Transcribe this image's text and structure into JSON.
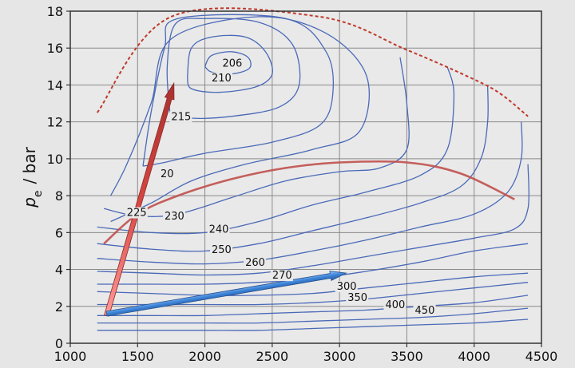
{
  "chart_data": {
    "type": "line",
    "title": "",
    "xlabel": "",
    "ylabel_symbol": "p",
    "ylabel_subscript": "e",
    "ylabel_unit": "/ bar",
    "xlim": [
      1000,
      4500
    ],
    "ylim": [
      0,
      18
    ],
    "x_ticks": [
      1000,
      1500,
      2000,
      2500,
      3000,
      3500,
      4000,
      4500
    ],
    "y_ticks": [
      0,
      2,
      4,
      6,
      8,
      10,
      12,
      14,
      16,
      18
    ],
    "grid": true,
    "colors": {
      "background": "#e6e6e6",
      "plot_background": "#e9e9e9",
      "grid": "#8a8a8a",
      "contour": "#4a69b8",
      "full_load": "#c0392b",
      "road_load": "#c0504d",
      "red_arrow": "#d64541",
      "blue_arrow": "#3b82d6"
    },
    "series": [
      {
        "role": "full-load-curve",
        "style": "dotted",
        "points": [
          [
            1200,
            12.5
          ],
          [
            1750,
            17.7
          ],
          [
            2850,
            17.7
          ],
          [
            3500,
            15.9
          ],
          [
            4000,
            14.3
          ],
          [
            4200,
            13.5
          ],
          [
            4400,
            12.3
          ]
        ]
      },
      {
        "role": "road-load-curve",
        "style": "solid",
        "points": [
          [
            1250,
            5.4
          ],
          [
            1500,
            7.0
          ],
          [
            1800,
            8.0
          ],
          [
            2200,
            8.9
          ],
          [
            2600,
            9.5
          ],
          [
            3000,
            9.8
          ],
          [
            3500,
            9.8
          ],
          [
            3900,
            9.2
          ],
          [
            4300,
            7.8
          ]
        ]
      }
    ],
    "contours": [
      {
        "label": "206",
        "label_at": [
          2130,
          15.0
        ],
        "points": [
          [
            2000,
            15.0
          ],
          [
            2050,
            15.6
          ],
          [
            2200,
            15.8
          ],
          [
            2320,
            15.5
          ],
          [
            2330,
            14.9
          ],
          [
            2200,
            14.6
          ],
          [
            2050,
            14.7
          ],
          [
            2000,
            15.0
          ]
        ]
      },
      {
        "label": "210",
        "label_at": [
          2050,
          14.2
        ],
        "points": [
          [
            1870,
            14.4
          ],
          [
            1900,
            16.0
          ],
          [
            2050,
            16.6
          ],
          [
            2300,
            16.6
          ],
          [
            2450,
            15.8
          ],
          [
            2500,
            14.6
          ],
          [
            2380,
            13.9
          ],
          [
            2100,
            13.6
          ],
          [
            1900,
            13.8
          ],
          [
            1870,
            14.4
          ]
        ]
      },
      {
        "label": "215",
        "label_at": [
          1750,
          12.1
        ],
        "points": [
          [
            1740,
            12.5
          ],
          [
            1720,
            15.0
          ],
          [
            1780,
            17.3
          ],
          [
            2000,
            17.6
          ],
          [
            2400,
            17.4
          ],
          [
            2650,
            16.2
          ],
          [
            2700,
            14.0
          ],
          [
            2550,
            12.8
          ],
          [
            2200,
            12.3
          ],
          [
            1900,
            12.2
          ],
          [
            1740,
            12.5
          ]
        ]
      },
      {
        "label": "20",
        "label_at": [
          1670,
          9.0
        ],
        "points": [
          [
            1540,
            9.6
          ],
          [
            1600,
            12.5
          ],
          [
            1700,
            16.0
          ],
          [
            1800,
            17.6
          ],
          [
            2600,
            17.6
          ],
          [
            2900,
            15.8
          ],
          [
            2950,
            13.5
          ],
          [
            2850,
            11.8
          ],
          [
            2500,
            10.9
          ],
          [
            2000,
            10.3
          ],
          [
            1700,
            9.8
          ],
          [
            1540,
            9.6
          ]
        ]
      },
      {
        "label": "225",
        "label_at": [
          1420,
          6.9
        ],
        "points": [
          [
            1300,
            8.0
          ],
          [
            1420,
            9.7
          ],
          [
            1600,
            13.0
          ],
          [
            1750,
            16.5
          ],
          [
            2400,
            17.7
          ],
          [
            2900,
            16.8
          ],
          [
            3200,
            14.5
          ],
          [
            3150,
            11.5
          ],
          [
            2800,
            10.5
          ],
          [
            2300,
            9.7
          ],
          [
            1900,
            8.8
          ],
          [
            1600,
            7.6
          ],
          [
            1300,
            6.6
          ]
        ]
      },
      {
        "label": "230",
        "label_at": [
          1700,
          6.7
        ],
        "points": [
          [
            1250,
            7.3
          ],
          [
            1500,
            6.9
          ],
          [
            1800,
            7.0
          ],
          [
            2200,
            7.9
          ],
          [
            2600,
            8.8
          ],
          [
            3000,
            9.3
          ],
          [
            3300,
            9.5
          ],
          [
            3500,
            10.5
          ],
          [
            3500,
            13.0
          ],
          [
            3450,
            15.5
          ]
        ]
      },
      {
        "label": "240",
        "label_at": [
          2030,
          6.0
        ],
        "points": [
          [
            1200,
            6.3
          ],
          [
            1600,
            6.0
          ],
          [
            2000,
            6.0
          ],
          [
            2400,
            6.6
          ],
          [
            2800,
            7.5
          ],
          [
            3200,
            8.2
          ],
          [
            3600,
            9.1
          ],
          [
            3800,
            10.5
          ],
          [
            3850,
            13.5
          ],
          [
            3800,
            15.0
          ]
        ]
      },
      {
        "label": "250",
        "label_at": [
          2050,
          4.9
        ],
        "points": [
          [
            1200,
            5.4
          ],
          [
            1600,
            5.1
          ],
          [
            2000,
            5.0
          ],
          [
            2400,
            5.4
          ],
          [
            2800,
            6.1
          ],
          [
            3200,
            6.8
          ],
          [
            3600,
            7.6
          ],
          [
            3900,
            8.5
          ],
          [
            4050,
            10.0
          ],
          [
            4100,
            12.0
          ],
          [
            4100,
            14.0
          ]
        ]
      },
      {
        "label": "260",
        "label_at": [
          2300,
          4.2
        ],
        "points": [
          [
            1200,
            4.6
          ],
          [
            1600,
            4.4
          ],
          [
            2000,
            4.3
          ],
          [
            2400,
            4.5
          ],
          [
            2800,
            5.0
          ],
          [
            3200,
            5.6
          ],
          [
            3600,
            6.3
          ],
          [
            4000,
            7.0
          ],
          [
            4250,
            8.2
          ],
          [
            4350,
            10.0
          ],
          [
            4350,
            12.0
          ]
        ]
      },
      {
        "label": "270",
        "label_at": [
          2500,
          3.5
        ],
        "points": [
          [
            1200,
            3.9
          ],
          [
            1600,
            3.8
          ],
          [
            2000,
            3.7
          ],
          [
            2400,
            3.8
          ],
          [
            2800,
            4.2
          ],
          [
            3200,
            4.7
          ],
          [
            3600,
            5.2
          ],
          [
            4000,
            5.7
          ],
          [
            4300,
            6.2
          ],
          [
            4400,
            7.3
          ],
          [
            4400,
            9.7
          ]
        ]
      },
      {
        "label": "300",
        "label_at": [
          2980,
          2.9
        ],
        "points": [
          [
            1200,
            3.2
          ],
          [
            1600,
            3.2
          ],
          [
            2000,
            3.2
          ],
          [
            2400,
            3.3
          ],
          [
            2800,
            3.5
          ],
          [
            3200,
            3.9
          ],
          [
            3600,
            4.4
          ],
          [
            4000,
            5.0
          ],
          [
            4400,
            5.4
          ]
        ]
      },
      {
        "label": "350",
        "label_at": [
          3060,
          2.3
        ],
        "points": [
          [
            1200,
            2.8
          ],
          [
            1600,
            2.7
          ],
          [
            2000,
            2.6
          ],
          [
            2400,
            2.6
          ],
          [
            2800,
            2.7
          ],
          [
            3200,
            3.0
          ],
          [
            3600,
            3.3
          ],
          [
            4000,
            3.6
          ],
          [
            4400,
            3.8
          ]
        ]
      },
      {
        "label": "400",
        "label_at": [
          3340,
          1.9
        ],
        "points": [
          [
            1200,
            2.1
          ],
          [
            1600,
            2.1
          ],
          [
            2000,
            2.1
          ],
          [
            2400,
            2.1
          ],
          [
            2800,
            2.2
          ],
          [
            3200,
            2.4
          ],
          [
            3600,
            2.7
          ],
          [
            4000,
            3.0
          ],
          [
            4400,
            3.3
          ]
        ]
      },
      {
        "label": "450",
        "label_at": [
          3560,
          1.6
        ],
        "points": [
          [
            1200,
            1.5
          ],
          [
            1600,
            1.5
          ],
          [
            2000,
            1.5
          ],
          [
            2400,
            1.6
          ],
          [
            2800,
            1.7
          ],
          [
            3200,
            1.8
          ],
          [
            3600,
            2.0
          ],
          [
            4000,
            2.2
          ],
          [
            4400,
            2.6
          ]
        ]
      },
      {
        "label": "",
        "points": [
          [
            1200,
            1.1
          ],
          [
            1600,
            1.1
          ],
          [
            2000,
            1.1
          ],
          [
            2400,
            1.1
          ],
          [
            2800,
            1.2
          ],
          [
            3200,
            1.3
          ],
          [
            3600,
            1.4
          ],
          [
            4000,
            1.6
          ],
          [
            4400,
            1.9
          ]
        ]
      },
      {
        "label": "",
        "points": [
          [
            1200,
            0.7
          ],
          [
            1600,
            0.7
          ],
          [
            2000,
            0.7
          ],
          [
            2400,
            0.7
          ],
          [
            2800,
            0.8
          ],
          [
            3200,
            0.9
          ],
          [
            3600,
            1.0
          ],
          [
            4000,
            1.1
          ],
          [
            4400,
            1.3
          ]
        ]
      }
    ],
    "arrows": [
      {
        "role": "red-arrow",
        "from": [
          1270,
          1.5
        ],
        "to": [
          1770,
          14.1
        ]
      },
      {
        "role": "blue-arrow",
        "from": [
          1270,
          1.6
        ],
        "to": [
          3050,
          3.8
        ]
      }
    ]
  }
}
